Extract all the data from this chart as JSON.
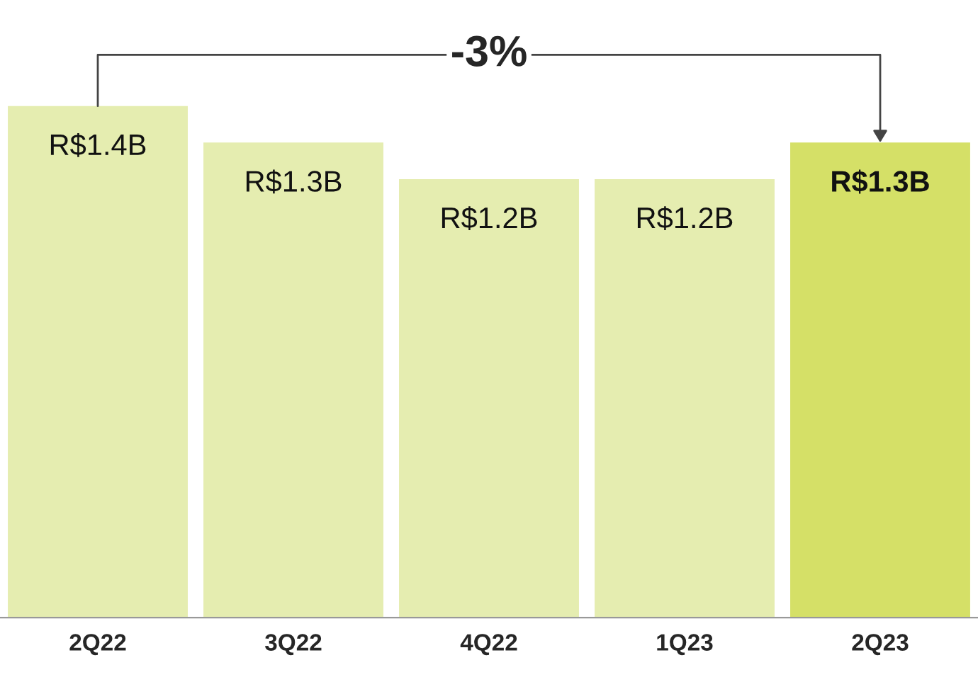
{
  "chart_data": {
    "type": "bar",
    "categories": [
      "2Q22",
      "3Q22",
      "4Q22",
      "1Q23",
      "2Q23"
    ],
    "values": [
      1400000000,
      1300000000,
      1200000000,
      1200000000,
      1300000000
    ],
    "value_labels": [
      "R$1.4B",
      "R$1.3B",
      "R$1.2B",
      "R$1.2B",
      "R$1.3B"
    ],
    "colors": [
      "#e5edb0",
      "#e5edb0",
      "#e5edb0",
      "#e5edb0",
      "#d5e067"
    ],
    "annotations": [
      "-3%"
    ],
    "grid": false,
    "legend": false,
    "tick_labels": "x"
  }
}
